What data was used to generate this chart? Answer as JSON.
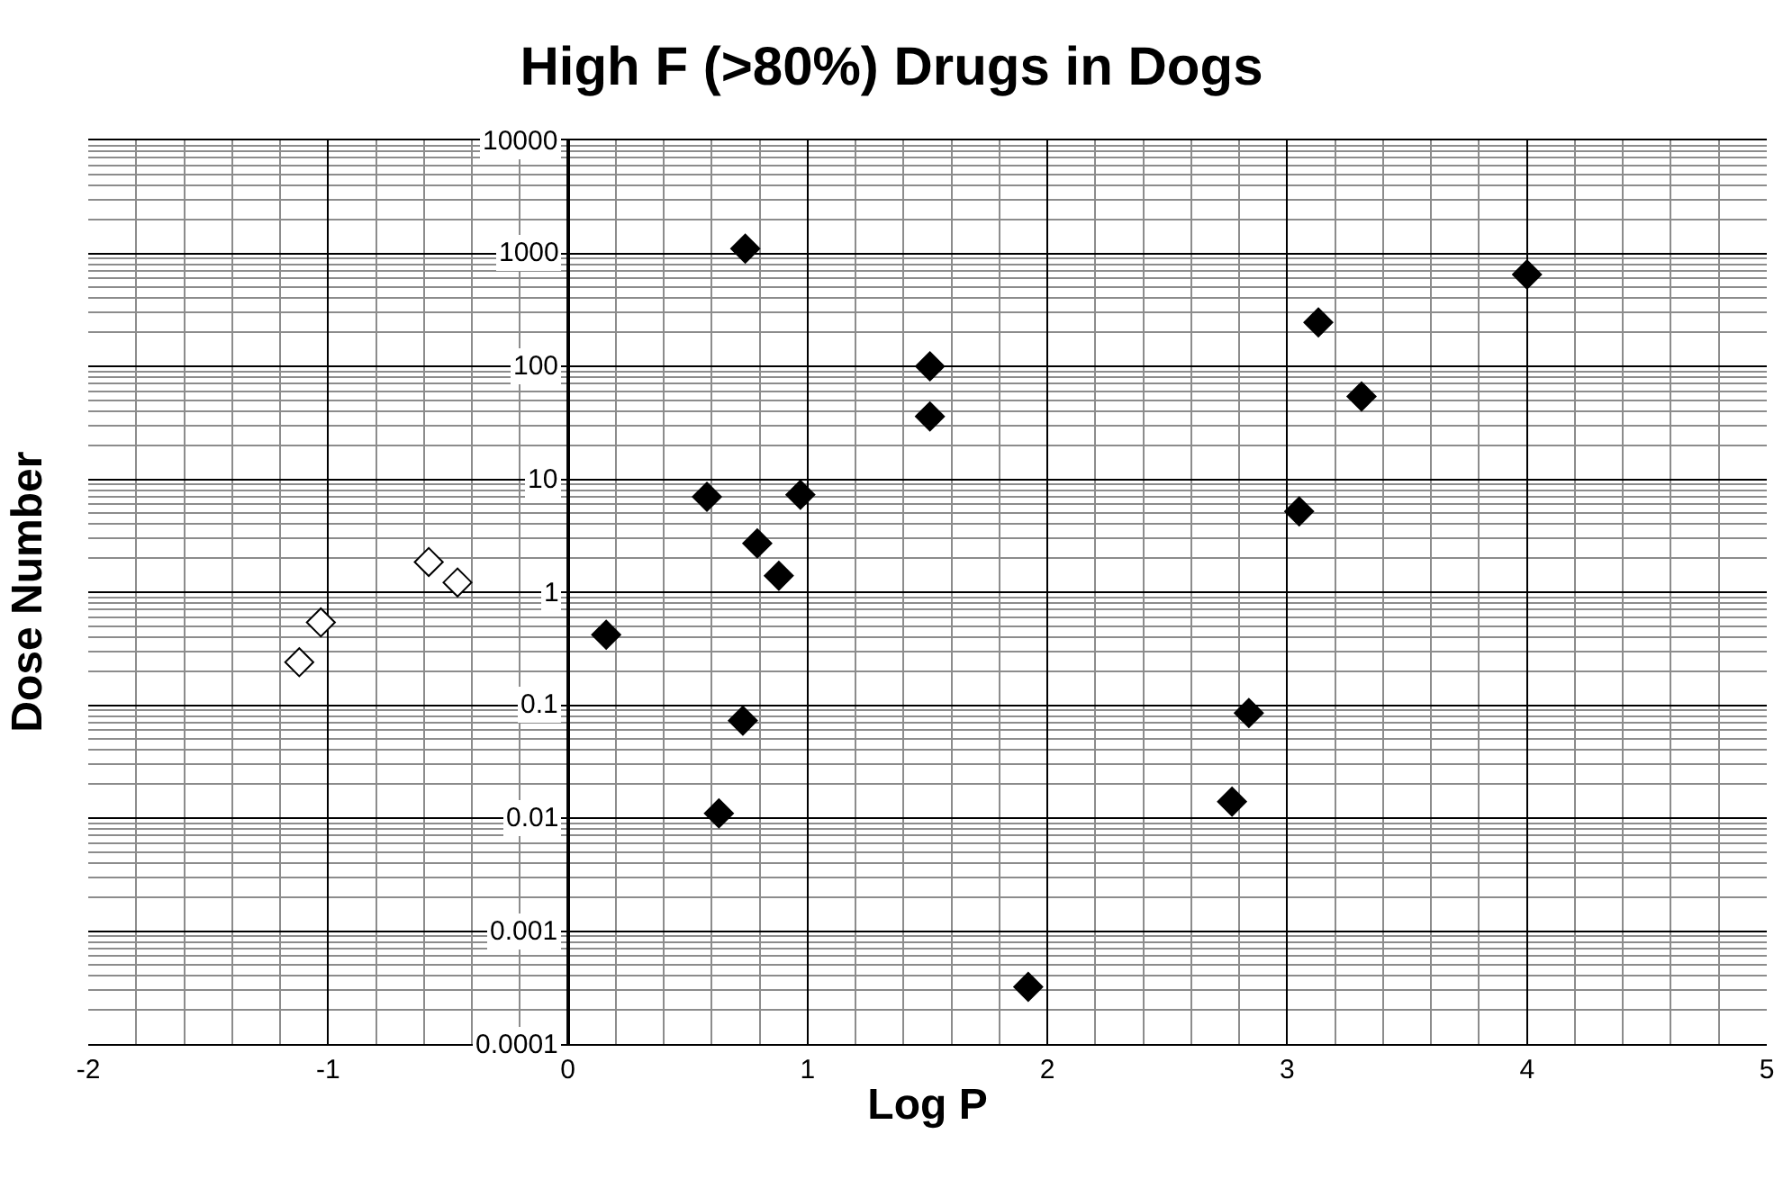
{
  "chart_data": {
    "type": "scatter",
    "title": "High F (>80%) Drugs in Dogs",
    "xlabel": "Log P",
    "ylabel": "Dose Number",
    "log": "y",
    "grid": true,
    "marker": "diamond",
    "xlim": [
      -2,
      5
    ],
    "xticks": [
      -2,
      -1,
      0,
      1,
      2,
      3,
      4,
      5
    ],
    "ylim": [
      0.0001,
      10000
    ],
    "yticks": [
      0.0001,
      0.001,
      0.01,
      0.1,
      1,
      10,
      100,
      1000,
      10000
    ],
    "series": [
      {
        "color": "#000000",
        "x": [
          0.74,
          0.16,
          0.58,
          0.79,
          0.88,
          0.97,
          1.51,
          1.51,
          0.73,
          0.63,
          1.92,
          3.13,
          3.31,
          3.05,
          4.0,
          2.84,
          2.77
        ],
        "values": [
          1100,
          0.42,
          7,
          2.7,
          1.4,
          7.3,
          100,
          36,
          0.073,
          0.011,
          0.00032,
          245,
          54,
          5.2,
          650,
          0.085,
          0.014
        ]
      },
      {
        "color": "#ffffff",
        "x": [
          -1.12,
          -1.03,
          -0.58,
          -0.46
        ],
        "values": [
          0.24,
          0.54,
          1.85,
          1.22
        ]
      }
    ]
  }
}
